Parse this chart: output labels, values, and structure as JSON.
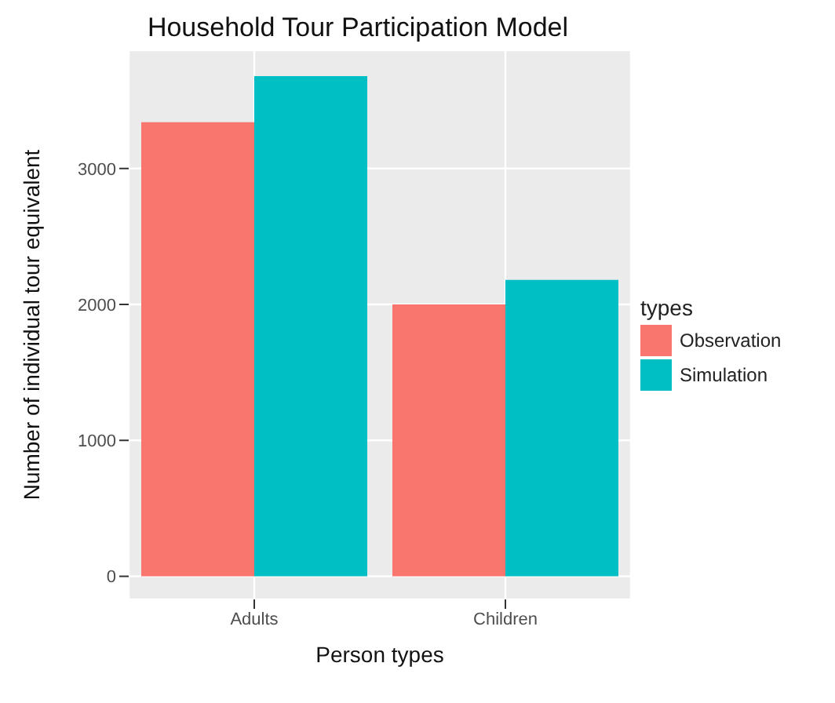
{
  "chart_data": {
    "type": "bar",
    "title": "Household Tour Participation Model",
    "xlabel": "Person types",
    "ylabel": "Number of individual tour equivalent",
    "legend_title": "types",
    "categories": [
      "Adults",
      "Children"
    ],
    "series": [
      {
        "name": "Observation",
        "color": "#f8766d",
        "values": [
          3340,
          2000
        ]
      },
      {
        "name": "Simulation",
        "color": "#00bfc4",
        "values": [
          3680,
          2180
        ]
      }
    ],
    "ylim": [
      -170,
      3870
    ],
    "yticks": [
      0,
      1000,
      2000,
      3000
    ],
    "grid": true,
    "legend": "right"
  }
}
